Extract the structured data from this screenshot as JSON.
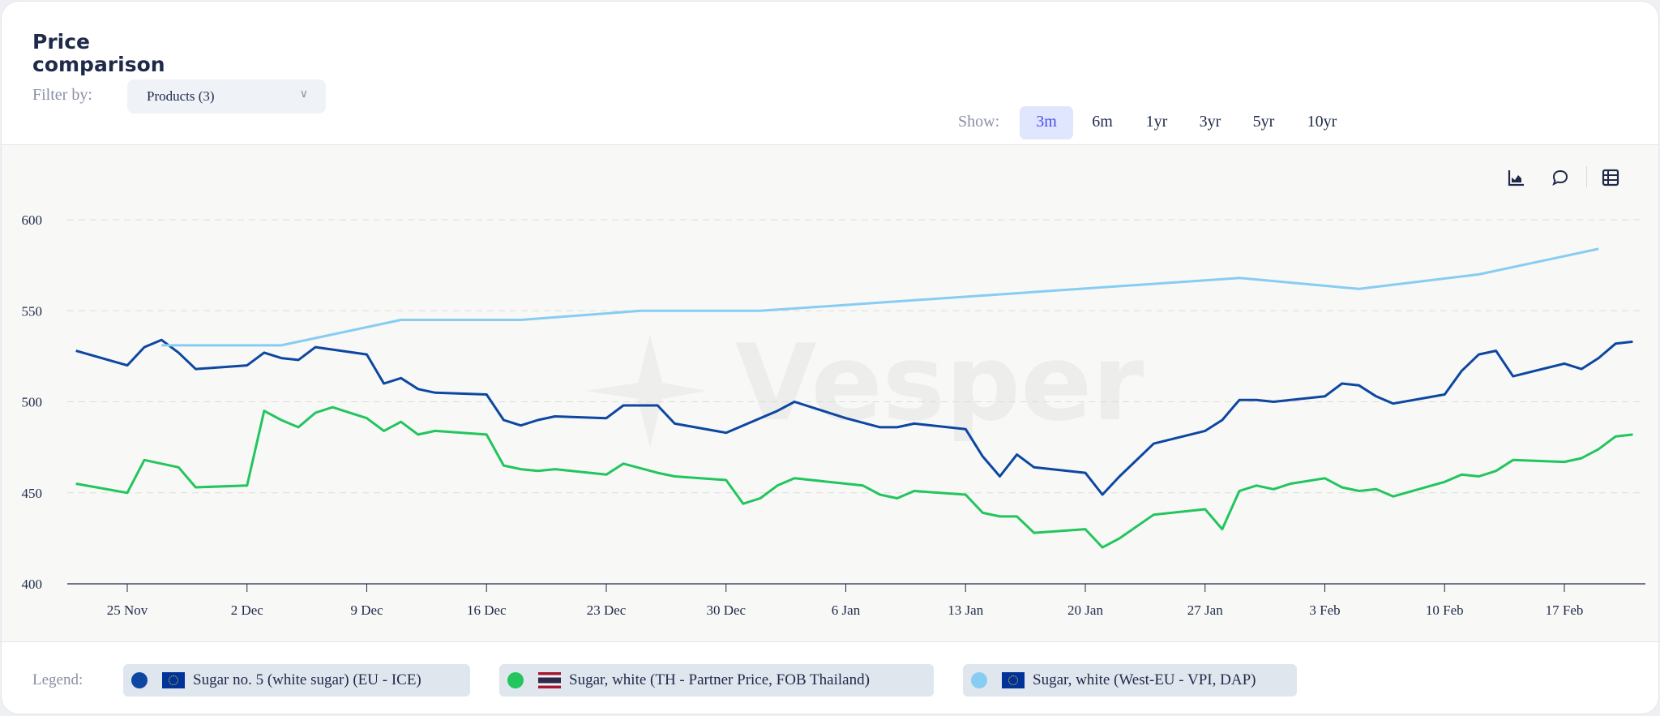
{
  "header": {
    "title": "Price comparison",
    "filter_label": "Filter by:",
    "filter_value": "Products (3)",
    "show_label": "Show:",
    "ranges": [
      "3m",
      "6m",
      "1yr",
      "3yr",
      "5yr",
      "10yr"
    ],
    "active_range": "3m"
  },
  "toolbar": {
    "icons": [
      "chart-icon",
      "comment-icon",
      "table-icon"
    ]
  },
  "watermark": "Vesper",
  "legend": {
    "label": "Legend:",
    "items": [
      {
        "label": "Sugar no. 5 (white sugar) (EU - ICE)",
        "color": "#0d47a1",
        "flag": "EU"
      },
      {
        "label": "Sugar, white (TH - Partner Price, FOB Thailand)",
        "color": "#22c55e",
        "flag": "TH"
      },
      {
        "label": "Sugar, white (West-EU - VPI, DAP)",
        "color": "#87cdf2",
        "flag": "EU"
      }
    ]
  },
  "chart_data": {
    "type": "line",
    "xlabel": "",
    "ylabel": "",
    "ylim": [
      400,
      600
    ],
    "yticks": [
      400,
      450,
      500,
      550,
      600
    ],
    "xticks": [
      "25 Nov",
      "2 Dec",
      "9 Dec",
      "16 Dec",
      "23 Dec",
      "30 Dec",
      "6 Jan",
      "13 Jan",
      "20 Jan",
      "27 Jan",
      "3 Feb",
      "10 Feb",
      "17 Feb"
    ],
    "grid": "horizontal dashed",
    "series": [
      {
        "name": "Sugar no. 5 (white sugar) (EU - ICE)",
        "color": "#0d47a1",
        "points": [
          [
            "22 Nov",
            528
          ],
          [
            "25 Nov",
            520
          ],
          [
            "26 Nov",
            530
          ],
          [
            "27 Nov",
            534
          ],
          [
            "28 Nov",
            527
          ],
          [
            "29 Nov",
            518
          ],
          [
            "2 Dec",
            520
          ],
          [
            "3 Dec",
            527
          ],
          [
            "4 Dec",
            524
          ],
          [
            "5 Dec",
            523
          ],
          [
            "6 Dec",
            530
          ],
          [
            "9 Dec",
            526
          ],
          [
            "10 Dec",
            510
          ],
          [
            "11 Dec",
            513
          ],
          [
            "12 Dec",
            507
          ],
          [
            "13 Dec",
            505
          ],
          [
            "16 Dec",
            504
          ],
          [
            "17 Dec",
            490
          ],
          [
            "18 Dec",
            487
          ],
          [
            "19 Dec",
            490
          ],
          [
            "20 Dec",
            492
          ],
          [
            "23 Dec",
            491
          ],
          [
            "24 Dec",
            498
          ],
          [
            "26 Dec",
            498
          ],
          [
            "27 Dec",
            488
          ],
          [
            "30 Dec",
            483
          ],
          [
            "2 Jan",
            495
          ],
          [
            "3 Jan",
            500
          ],
          [
            "6 Jan",
            491
          ],
          [
            "8 Jan",
            486
          ],
          [
            "9 Jan",
            486
          ],
          [
            "10 Jan",
            488
          ],
          [
            "13 Jan",
            485
          ],
          [
            "14 Jan",
            470
          ],
          [
            "15 Jan",
            459
          ],
          [
            "16 Jan",
            471
          ],
          [
            "17 Jan",
            464
          ],
          [
            "20 Jan",
            461
          ],
          [
            "21 Jan",
            449
          ],
          [
            "22 Jan",
            459
          ],
          [
            "24 Jan",
            477
          ],
          [
            "27 Jan",
            484
          ],
          [
            "28 Jan",
            490
          ],
          [
            "29 Jan",
            501
          ],
          [
            "30 Jan",
            501
          ],
          [
            "31 Jan",
            500
          ],
          [
            "3 Feb",
            503
          ],
          [
            "4 Feb",
            510
          ],
          [
            "5 Feb",
            509
          ],
          [
            "6 Feb",
            503
          ],
          [
            "7 Feb",
            499
          ],
          [
            "10 Feb",
            504
          ],
          [
            "11 Feb",
            517
          ],
          [
            "12 Feb",
            526
          ],
          [
            "13 Feb",
            528
          ],
          [
            "14 Feb",
            514
          ],
          [
            "17 Feb",
            521
          ],
          [
            "18 Feb",
            518
          ],
          [
            "19 Feb",
            524
          ],
          [
            "20 Feb",
            532
          ],
          [
            "21 Feb",
            533
          ]
        ]
      },
      {
        "name": "Sugar, white (TH - Partner Price, FOB Thailand)",
        "color": "#22c55e",
        "points": [
          [
            "22 Nov",
            455
          ],
          [
            "25 Nov",
            450
          ],
          [
            "26 Nov",
            468
          ],
          [
            "28 Nov",
            464
          ],
          [
            "29 Nov",
            453
          ],
          [
            "2 Dec",
            454
          ],
          [
            "3 Dec",
            495
          ],
          [
            "4 Dec",
            490
          ],
          [
            "5 Dec",
            486
          ],
          [
            "6 Dec",
            494
          ],
          [
            "7 Dec",
            497
          ],
          [
            "9 Dec",
            491
          ],
          [
            "10 Dec",
            484
          ],
          [
            "11 Dec",
            489
          ],
          [
            "12 Dec",
            482
          ],
          [
            "13 Dec",
            484
          ],
          [
            "16 Dec",
            482
          ],
          [
            "17 Dec",
            465
          ],
          [
            "18 Dec",
            463
          ],
          [
            "19 Dec",
            462
          ],
          [
            "20 Dec",
            463
          ],
          [
            "23 Dec",
            460
          ],
          [
            "24 Dec",
            466
          ],
          [
            "26 Dec",
            461
          ],
          [
            "27 Dec",
            459
          ],
          [
            "30 Dec",
            457
          ],
          [
            "31 Dec",
            444
          ],
          [
            "1 Jan",
            447
          ],
          [
            "2 Jan",
            454
          ],
          [
            "3 Jan",
            458
          ],
          [
            "6 Jan",
            455
          ],
          [
            "7 Jan",
            454
          ],
          [
            "8 Jan",
            449
          ],
          [
            "9 Jan",
            447
          ],
          [
            "10 Jan",
            451
          ],
          [
            "13 Jan",
            449
          ],
          [
            "14 Jan",
            439
          ],
          [
            "15 Jan",
            437
          ],
          [
            "16 Jan",
            437
          ],
          [
            "17 Jan",
            428
          ],
          [
            "20 Jan",
            430
          ],
          [
            "21 Jan",
            420
          ],
          [
            "22 Jan",
            425
          ],
          [
            "24 Jan",
            438
          ],
          [
            "27 Jan",
            441
          ],
          [
            "28 Jan",
            430
          ],
          [
            "29 Jan",
            451
          ],
          [
            "30 Jan",
            454
          ],
          [
            "31 Jan",
            452
          ],
          [
            "1 Feb",
            455
          ],
          [
            "3 Feb",
            458
          ],
          [
            "4 Feb",
            453
          ],
          [
            "5 Feb",
            451
          ],
          [
            "6 Feb",
            452
          ],
          [
            "7 Feb",
            448
          ],
          [
            "10 Feb",
            456
          ],
          [
            "11 Feb",
            460
          ],
          [
            "12 Feb",
            459
          ],
          [
            "13 Feb",
            462
          ],
          [
            "14 Feb",
            468
          ],
          [
            "17 Feb",
            467
          ],
          [
            "18 Feb",
            469
          ],
          [
            "19 Feb",
            474
          ],
          [
            "20 Feb",
            481
          ],
          [
            "21 Feb",
            482
          ]
        ]
      },
      {
        "name": "Sugar, white (West-EU - VPI, DAP)",
        "color": "#87cdf2",
        "points": [
          [
            "27 Nov",
            531
          ],
          [
            "4 Dec",
            531
          ],
          [
            "11 Dec",
            545
          ],
          [
            "18 Dec",
            545
          ],
          [
            "25 Dec",
            550
          ],
          [
            "1 Jan",
            550
          ],
          [
            "29 Jan",
            568
          ],
          [
            "5 Feb",
            562
          ],
          [
            "12 Feb",
            570
          ],
          [
            "19 Feb",
            584
          ]
        ]
      }
    ]
  }
}
